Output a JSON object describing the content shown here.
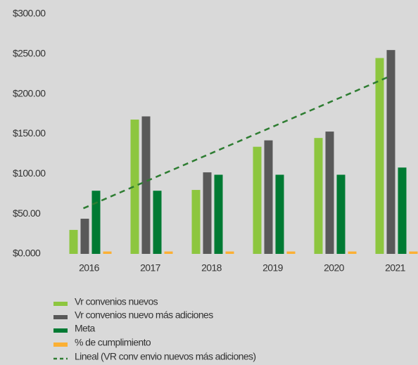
{
  "chart_data": {
    "type": "bar",
    "categories": [
      "2016",
      "2017",
      "2018",
      "2019",
      "2020",
      "2021"
    ],
    "series": [
      {
        "name": "Vr convenios nuevos",
        "color": "#8dc63f",
        "values": [
          30,
          168,
          80,
          134,
          145,
          245
        ]
      },
      {
        "name": "Vr convenios nuevo más adiciones",
        "color": "#595959",
        "values": [
          44,
          172,
          102,
          142,
          153,
          255
        ]
      },
      {
        "name": "Meta",
        "color": "#007a33",
        "values": [
          79,
          79,
          99,
          99,
          99,
          108
        ]
      },
      {
        "name": "% de cumplimiento",
        "color": "#fbb034",
        "values": [
          3,
          3,
          3,
          3,
          3,
          3
        ]
      },
      {
        "name": "Lineal (VR conv envio nuevos más adiciones)",
        "color": "#2e7d32",
        "type": "line",
        "dashed": true,
        "values": [
          57,
          90,
          123,
          156,
          189,
          222
        ]
      }
    ],
    "ylim": [
      0,
      300
    ],
    "yticks": [
      {
        "value": 0,
        "label": "$0.000"
      },
      {
        "value": 50,
        "label": "$50.00"
      },
      {
        "value": 100,
        "label": "$100.00"
      },
      {
        "value": 150,
        "label": "$150.00"
      },
      {
        "value": 200,
        "label": "$200.00"
      },
      {
        "value": 250,
        "label": "$250.00"
      },
      {
        "value": 300,
        "label": "$300.00"
      }
    ],
    "grid": false,
    "legend": "bottom"
  }
}
